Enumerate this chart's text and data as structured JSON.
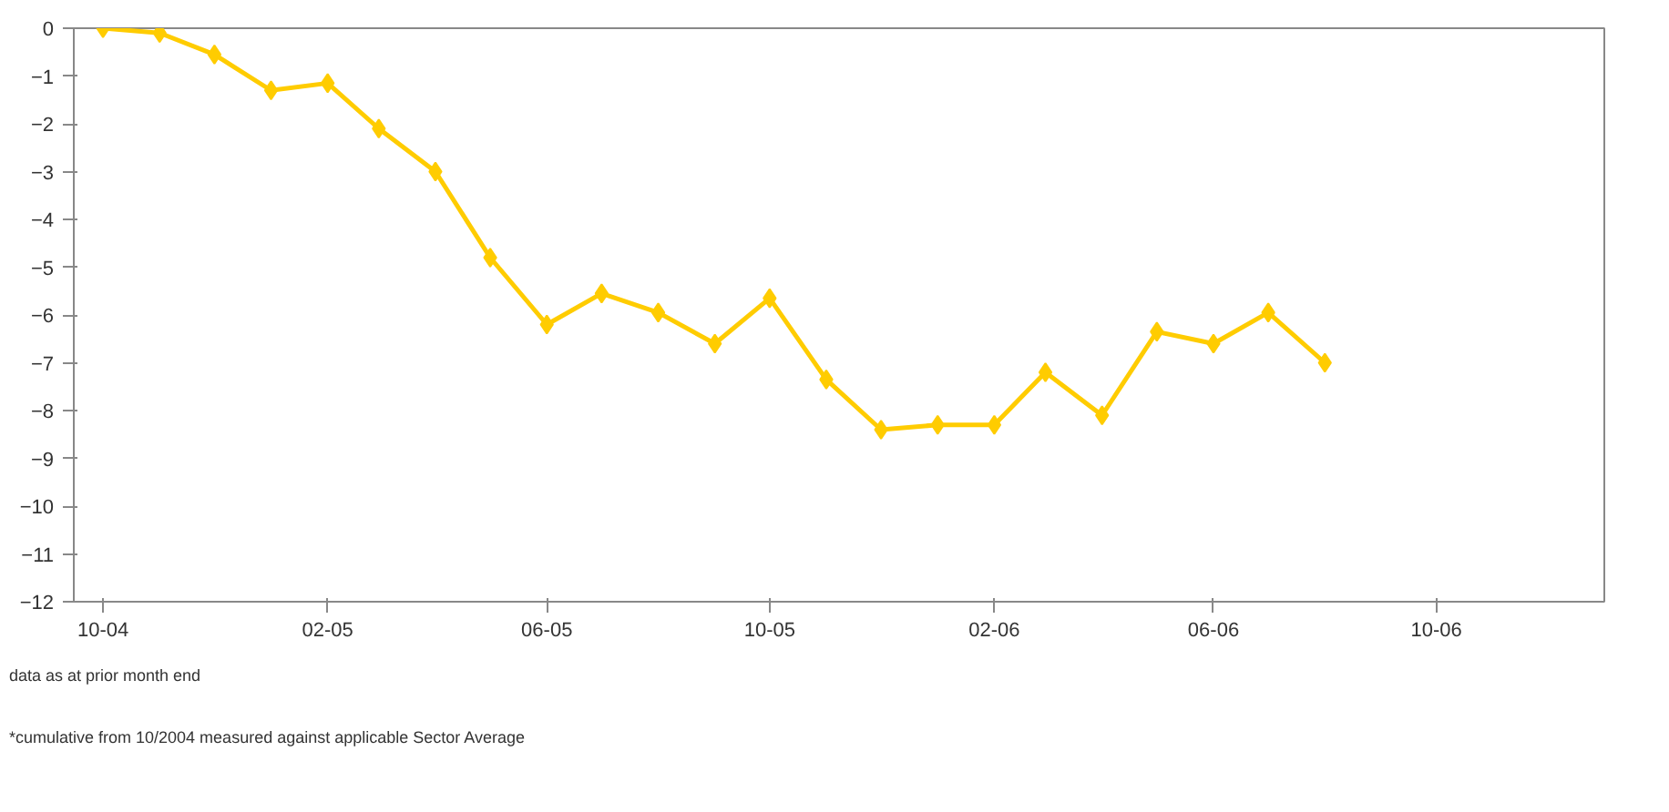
{
  "chart_data": {
    "type": "line",
    "x": [
      "2004-10",
      "2004-11",
      "2004-12",
      "2005-01",
      "2005-02",
      "2005-03",
      "2005-04",
      "2005-05",
      "2005-06",
      "2005-07",
      "2005-08",
      "2005-09",
      "2005-10",
      "2005-11",
      "2005-12",
      "2006-01",
      "2006-02",
      "2006-03",
      "2006-04",
      "2006-05",
      "2006-06",
      "2006-07",
      "2006-08"
    ],
    "series": [
      {
        "color": "#ffcc00",
        "values": [
          0,
          -0.1,
          -0.55,
          -1.3,
          -1.15,
          -2.1,
          -3.0,
          -4.8,
          -6.2,
          -5.55,
          -5.95,
          -6.6,
          -5.65,
          -7.35,
          -8.4,
          -8.3,
          -8.3,
          -7.2,
          -8.1,
          -6.35,
          -6.6,
          -5.95,
          -7.0
        ]
      }
    ],
    "ylim": [
      -12,
      0
    ],
    "yticks": [
      -12,
      -11,
      -10,
      -9,
      -8,
      -7,
      -6,
      -5,
      -4,
      -3,
      -2,
      -1,
      0
    ],
    "xlim": [
      "2004-09-15",
      "2007-01-01"
    ],
    "xticks": [
      {
        "value": "2004-10",
        "label": "10-04"
      },
      {
        "value": "2005-02",
        "label": "02-05"
      },
      {
        "value": "2005-06",
        "label": "06-05"
      },
      {
        "value": "2005-10",
        "label": "10-05"
      },
      {
        "value": "2006-02",
        "label": "02-06"
      },
      {
        "value": "2006-06",
        "label": "06-06"
      },
      {
        "value": "2006-10",
        "label": "10-06"
      }
    ],
    "marker": "diamond",
    "line_style": "solid",
    "grid": false,
    "annotations": [
      "data as at prior month end",
      "*cumulative from 10/2004 measured against applicable Sector Average"
    ]
  }
}
